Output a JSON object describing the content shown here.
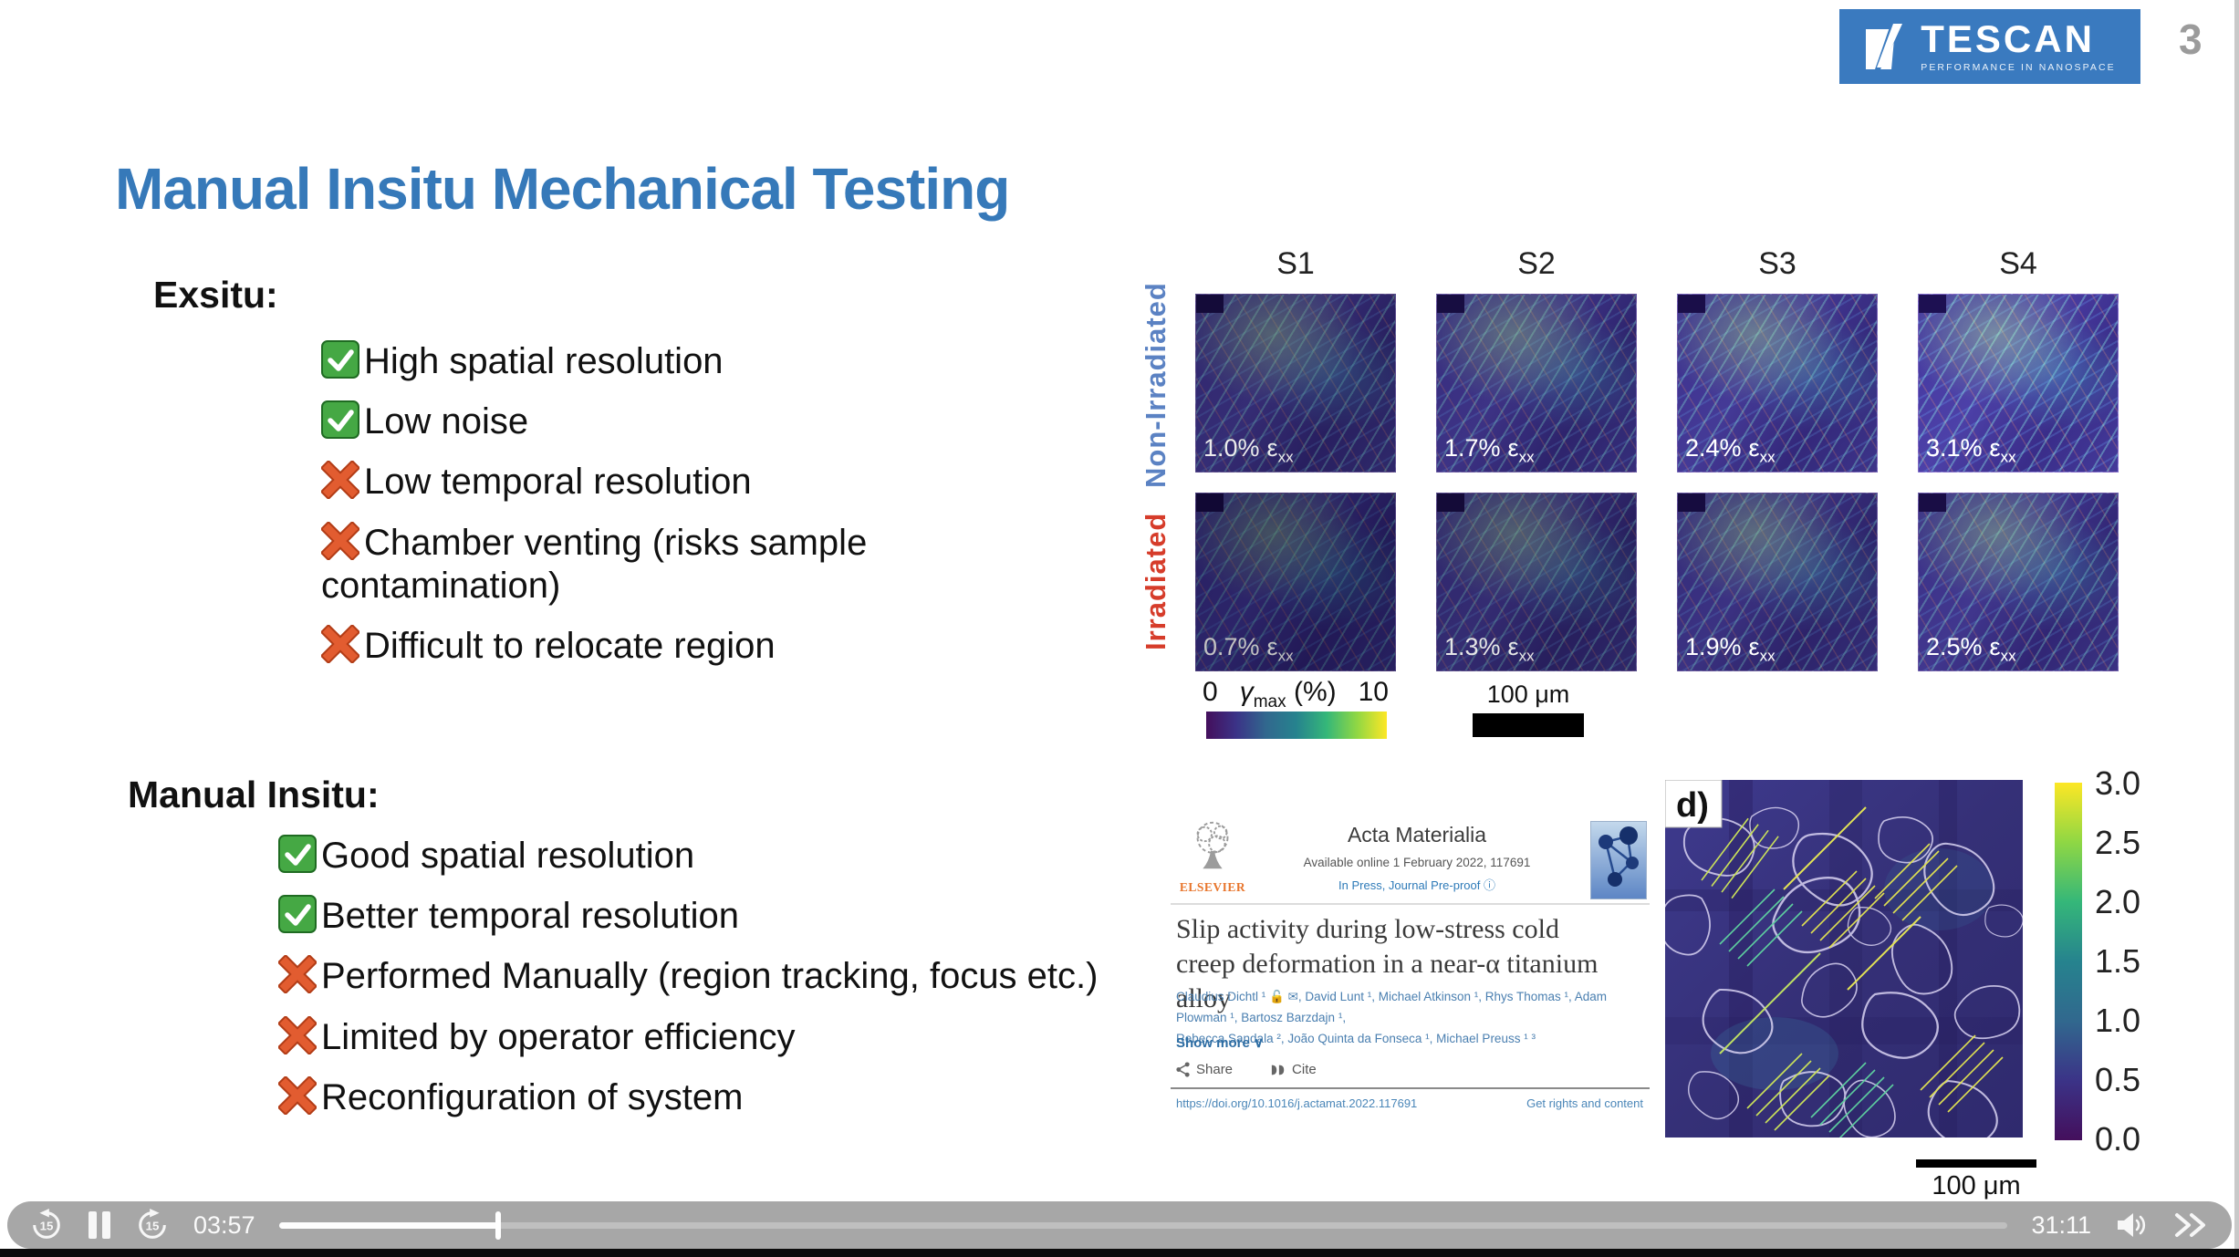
{
  "window": {
    "slide_number": "3"
  },
  "logo": {
    "brand": "TESCAN",
    "tagline": "PERFORMANCE IN NANOSPACE"
  },
  "slide": {
    "title": "Manual Insitu Mechanical Testing",
    "sections": [
      {
        "heading": "Exsitu:",
        "items": [
          {
            "icon": "check-icon",
            "text": "High spatial resolution"
          },
          {
            "icon": "check-icon",
            "text": "Low noise"
          },
          {
            "icon": "cross-icon",
            "text": "Low temporal resolution"
          },
          {
            "icon": "cross-icon",
            "text": "Chamber venting (risks sample contamination)"
          },
          {
            "icon": "cross-icon",
            "text": "Difficult to relocate region"
          }
        ]
      },
      {
        "heading": "Manual Insitu:",
        "items": [
          {
            "icon": "check-icon",
            "text": "Good spatial resolution"
          },
          {
            "icon": "check-icon",
            "text": "Better temporal resolution"
          },
          {
            "icon": "cross-icon",
            "text": "Performed Manually (region tracking, focus etc.)"
          },
          {
            "icon": "cross-icon",
            "text": "Limited by operator efficiency"
          },
          {
            "icon": "cross-icon",
            "text": "Reconfiguration of system"
          }
        ]
      }
    ]
  },
  "strain_grid": {
    "column_headers": [
      "S1",
      "S2",
      "S3",
      "S4"
    ],
    "row_labels": [
      {
        "text": "Non-Irradiated",
        "color": "#5b82c3"
      },
      {
        "text": "Irradiated",
        "color": "#d63c2a"
      }
    ],
    "epsilon": "ε",
    "epsilon_sub": "xx",
    "cells": [
      {
        "row": "Non-Irradiated",
        "col": "S1",
        "value": "1.0%"
      },
      {
        "row": "Non-Irradiated",
        "col": "S2",
        "value": "1.7%"
      },
      {
        "row": "Non-Irradiated",
        "col": "S3",
        "value": "2.4%"
      },
      {
        "row": "Non-Irradiated",
        "col": "S4",
        "value": "3.1%"
      },
      {
        "row": "Irradiated",
        "col": "S1",
        "value": "0.7%"
      },
      {
        "row": "Irradiated",
        "col": "S2",
        "value": "1.3%"
      },
      {
        "row": "Irradiated",
        "col": "S3",
        "value": "1.9%"
      },
      {
        "row": "Irradiated",
        "col": "S4",
        "value": "2.5%"
      }
    ],
    "colorbar": {
      "min": "0",
      "symbol": "γ",
      "symbol_sub": "max",
      "unit": "(%)",
      "max": "10"
    },
    "scalebar_label": "100 μm"
  },
  "paper": {
    "publisher": "ELSEVIER",
    "journal": "Acta Materialia",
    "availability": "Available online 1 February 2022, 117691",
    "status": "In Press, Journal Pre-proof ⓘ",
    "title": "Slip activity during low-stress cold creep deformation in a near-α titanium alloy",
    "authors_line1": "Claudius Dichtl ¹ 🔓 ✉, David Lunt ¹, Michael Atkinson ¹, Rhys Thomas ¹, Adam Plowman ¹, Bartosz Barzdajn ¹,",
    "authors_line2": "Rebecca Sandala ², João Quinta da Fonseca ¹, Michael Preuss ¹ ³",
    "show_more": "Show more",
    "share": "Share",
    "cite": "Cite",
    "doi": "https://doi.org/10.1016/j.actamat.2022.117691",
    "rights": "Get rights and content"
  },
  "dic_map": {
    "panel_label": "d)",
    "colorbar_ticks": [
      "3.0",
      "2.5",
      "2.0",
      "1.5",
      "1.0",
      "0.5",
      "0.0"
    ],
    "scalebar_label": "100 μm"
  },
  "player": {
    "elapsed": "03:57",
    "duration": "31:11",
    "progress_percent": "12.7",
    "skip_seconds": "15"
  },
  "colors": {
    "brand_blue": "#3a7abf",
    "title_blue": "#3679b9",
    "check_green": "#45a844",
    "cross_orange": "#e25c30",
    "non_irradiated_blue": "#5b82c3",
    "irradiated_red": "#d63c2a"
  }
}
